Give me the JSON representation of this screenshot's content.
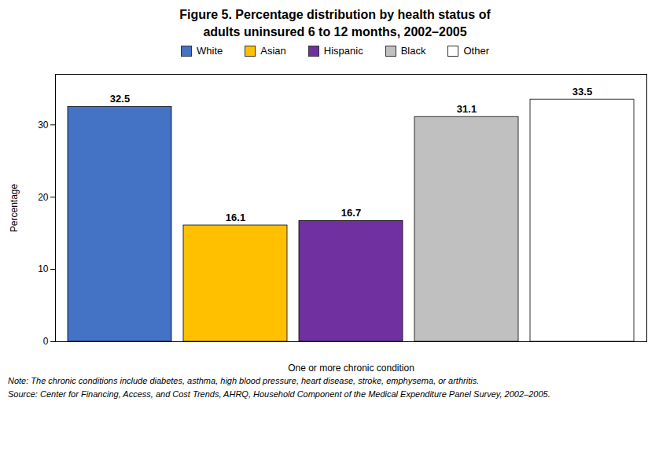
{
  "chart_data": {
    "type": "bar",
    "title": "Figure 5. Percentage distribution by health status of\nadults uninsured 6 to 12 months, 2002–2005",
    "categories": [
      "White",
      "Asian",
      "Hispanic",
      "Black",
      "Other"
    ],
    "values": [
      32.5,
      16.1,
      16.7,
      31.1,
      33.5
    ],
    "colors": [
      "#4472C4",
      "#FFC000",
      "#7030A0",
      "#C0C0C0",
      "#FFFFFF"
    ],
    "xlabel": "One or more chronic condition",
    "ylabel": "Percentage",
    "ylim": [
      0,
      37
    ],
    "yticks": [
      0,
      10,
      20,
      30
    ],
    "grid": false,
    "legend": "top",
    "data_labels": true,
    "tick_labels": "y",
    "annotations": [
      "Note: The chronic conditions include diabetes, asthma, high blood pressure, heart disease, stroke, emphysema, or arthritis.",
      "Source: Center for Financing, Access, and Cost Trends, AHRQ, Household Component of the Medical Expenditure Panel Survey, 2002–2005."
    ]
  }
}
